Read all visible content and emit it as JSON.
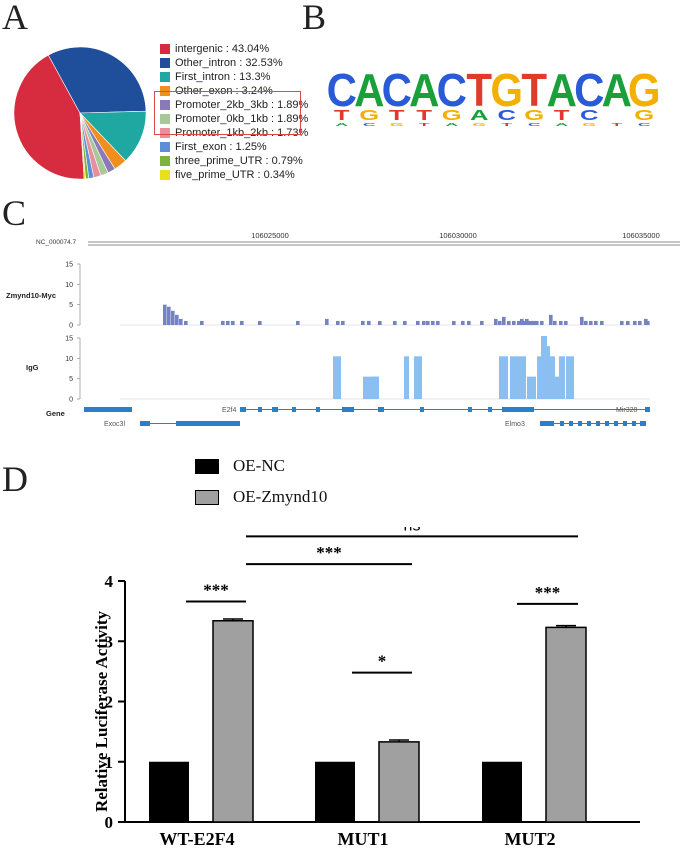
{
  "panels": {
    "a": "A",
    "b": "B",
    "c": "C",
    "d": "D"
  },
  "pie": {
    "items": [
      {
        "label": "intergenic : 43.04%",
        "value": 43.04,
        "color": "#d72b3f"
      },
      {
        "label": "Other_intron : 32.53%",
        "value": 32.53,
        "color": "#1f4e9a"
      },
      {
        "label": "First_intron : 13.3%",
        "value": 13.3,
        "color": "#1fa8a1"
      },
      {
        "label": "Other_exon : 3.24%",
        "value": 3.24,
        "color": "#f08f1d"
      },
      {
        "label": "Promoter_2kb_3kb : 1.89%",
        "value": 1.89,
        "color": "#8a7bb8"
      },
      {
        "label": "Promoter_0kb_1kb : 1.89%",
        "value": 1.89,
        "color": "#a8c89a"
      },
      {
        "label": "Promoter_1kb_2kb : 1.73%",
        "value": 1.73,
        "color": "#e88f9b"
      },
      {
        "label": "First_exon : 1.25%",
        "value": 1.25,
        "color": "#5c8fd6"
      },
      {
        "label": "three_prime_UTR : 0.79%",
        "value": 0.79,
        "color": "#7fb33a"
      },
      {
        "label": "five_prime_UTR : 0.34%",
        "value": 0.34,
        "color": "#e8e01c"
      }
    ]
  },
  "motif": {
    "letters": [
      "C",
      "A",
      "C",
      "A",
      "C",
      "T",
      "G",
      "T",
      "A",
      "C",
      "A",
      "G"
    ],
    "lower": [
      "T",
      "G",
      "T",
      "T",
      "G",
      "A",
      "C",
      "G",
      "T",
      "C",
      "G"
    ]
  },
  "tracks": {
    "chrom": "NC_000074.7",
    "ticks": [
      "106025000",
      "106030000",
      "106035000"
    ],
    "track1": "Zmynd10-Myc",
    "track2": "IgG",
    "gene_label": "Gene",
    "yticks": [
      "15",
      "10",
      "5",
      "0"
    ],
    "genes": {
      "e2f4": "E2f4",
      "mir": "Mir328",
      "exoc": "Exoc3l",
      "elmo": "Elmo3"
    },
    "myc_values": [
      5,
      4.5,
      3.5,
      2.5,
      1.5,
      1,
      1,
      1,
      1,
      1,
      1,
      1,
      1,
      1.5,
      1,
      1,
      1,
      1,
      1,
      1,
      1,
      1,
      1,
      1,
      1,
      1,
      1,
      1,
      1,
      1,
      1.5,
      1,
      2,
      1,
      1,
      1,
      1,
      1,
      1,
      2.5,
      1,
      1,
      1,
      2,
      1,
      1,
      1,
      1,
      1,
      1,
      1,
      1,
      1.5,
      1,
      1.5,
      1.5,
      1,
      1,
      1
    ],
    "igg_values": [
      10.5,
      5.5,
      5.5,
      10.5,
      10.5,
      10.5,
      10.5,
      10.5,
      5.5,
      5.5,
      10.5,
      15.5,
      13,
      10.5,
      5.5,
      10.5,
      10.5
    ]
  },
  "chart_data": {
    "type": "bar",
    "title": "",
    "categories": [
      "WT-E2F4",
      "MUT1",
      "MUT2"
    ],
    "series": [
      {
        "name": "OE-NC",
        "values": [
          1,
          1,
          1
        ],
        "color": "#000000"
      },
      {
        "name": "OE-Zmynd10",
        "values": [
          3.34,
          1.33,
          3.23
        ],
        "errors": [
          0.03,
          0.03,
          0.03
        ],
        "color": "#a0a0a0"
      }
    ],
    "ylabel": "Relative  Luciferase Activity",
    "xlabel": "",
    "ylim": [
      0,
      4
    ],
    "yticks": [
      0,
      1,
      2,
      3,
      4
    ],
    "significance": [
      {
        "label": "***",
        "between": "WT-E2F4 OE-NC vs OE-Zmynd10"
      },
      {
        "label": "*",
        "between": "MUT1 OE-NC vs OE-Zmynd10"
      },
      {
        "label": "***",
        "between": "MUT2 OE-NC vs OE-Zmynd10"
      },
      {
        "label": "***",
        "between": "WT-E2F4 vs MUT1"
      },
      {
        "label": "ns",
        "between": "WT-E2F4 vs MUT2"
      }
    ]
  }
}
